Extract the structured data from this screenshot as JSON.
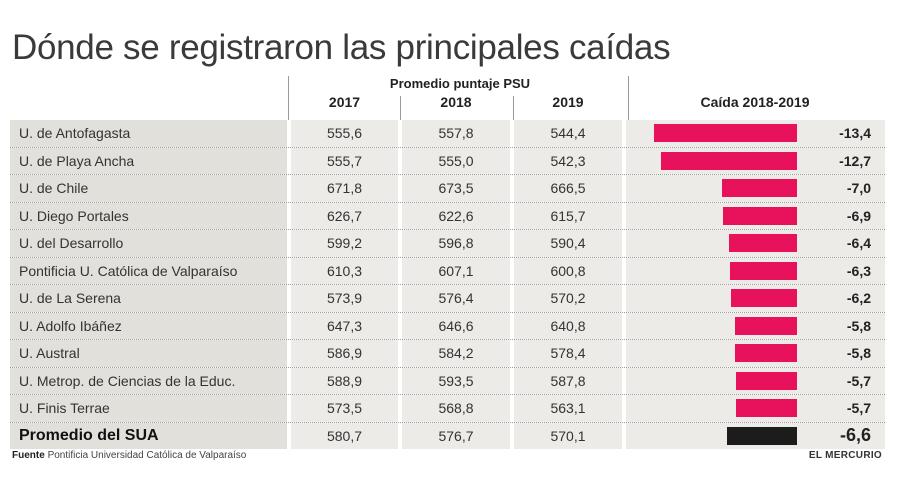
{
  "chart_data": {
    "type": "table",
    "title": "Dónde se registraron las principales caídas",
    "group_header": "Promedio puntaje PSU",
    "columns": [
      "2017",
      "2018",
      "2019"
    ],
    "bar_column_header": "Caída 2018-2019",
    "rows": [
      {
        "name": "U. de Antofagasta",
        "v2017": "555,6",
        "v2018": "557,8",
        "v2019": "544,4",
        "drop": -13.4,
        "drop_label": "-13,4"
      },
      {
        "name": "U. de Playa Ancha",
        "v2017": "555,7",
        "v2018": "555,0",
        "v2019": "542,3",
        "drop": -12.7,
        "drop_label": "-12,7"
      },
      {
        "name": "U. de Chile",
        "v2017": "671,8",
        "v2018": "673,5",
        "v2019": "666,5",
        "drop": -7.0,
        "drop_label": "-7,0"
      },
      {
        "name": "U. Diego Portales",
        "v2017": "626,7",
        "v2018": "622,6",
        "v2019": "615,7",
        "drop": -6.9,
        "drop_label": "-6,9"
      },
      {
        "name": "U. del Desarrollo",
        "v2017": "599,2",
        "v2018": "596,8",
        "v2019": "590,4",
        "drop": -6.4,
        "drop_label": "-6,4"
      },
      {
        "name": "Pontificia U. Católica de Valparaíso",
        "v2017": "610,3",
        "v2018": "607,1",
        "v2019": "600,8",
        "drop": -6.3,
        "drop_label": "-6,3"
      },
      {
        "name": "U. de La Serena",
        "v2017": "573,9",
        "v2018": "576,4",
        "v2019": "570,2",
        "drop": -6.2,
        "drop_label": "-6,2"
      },
      {
        "name": "U. Adolfo Ibáñez",
        "v2017": "647,3",
        "v2018": "646,6",
        "v2019": "640,8",
        "drop": -5.8,
        "drop_label": "-5,8"
      },
      {
        "name": "U. Austral",
        "v2017": "586,9",
        "v2018": "584,2",
        "v2019": "578,4",
        "drop": -5.8,
        "drop_label": "-5,8"
      },
      {
        "name": "U. Metrop. de Ciencias de la Educ.",
        "v2017": "588,9",
        "v2018": "593,5",
        "v2019": "587,8",
        "drop": -5.7,
        "drop_label": "-5,7"
      },
      {
        "name": "U. Finis Terrae",
        "v2017": "573,5",
        "v2018": "568,8",
        "v2019": "563,1",
        "drop": -5.7,
        "drop_label": "-5,7"
      },
      {
        "name": "Promedio del SUA",
        "v2017": "580,7",
        "v2018": "576,7",
        "v2019": "570,1",
        "drop": -6.6,
        "drop_label": "-6,6",
        "total": true
      }
    ],
    "bar_colors": {
      "default": "#e8125c",
      "total": "#1c1c1c"
    },
    "bar_max": 13.4
  },
  "footer": {
    "source_label": "Fuente",
    "source_text": "Pontificia Universidad Católica de Valparaíso",
    "brand": "EL MERCURIO"
  }
}
